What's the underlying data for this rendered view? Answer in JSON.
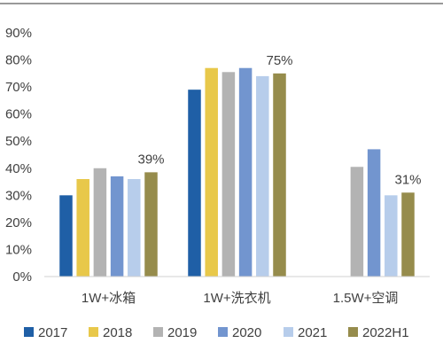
{
  "chart_data": {
    "type": "bar",
    "categories": [
      "1W+冰箱",
      "1W+洗衣机",
      "1.5W+空调"
    ],
    "series": [
      {
        "name": "2017",
        "values": [
          30,
          69,
          null
        ],
        "color": "#1f5fa6"
      },
      {
        "name": "2018",
        "values": [
          36,
          77,
          null
        ],
        "color": "#e8c84a"
      },
      {
        "name": "2019",
        "values": [
          40,
          75.5,
          40.5
        ],
        "color": "#b3b3b3"
      },
      {
        "name": "2020",
        "values": [
          37,
          77,
          47
        ],
        "color": "#7295cf"
      },
      {
        "name": "2021",
        "values": [
          36,
          74,
          30
        ],
        "color": "#b7cdeb"
      },
      {
        "name": "2022H1",
        "values": [
          38.5,
          75,
          31
        ],
        "color": "#968c4c"
      }
    ],
    "ylim": [
      0,
      90
    ],
    "yticks": [
      "0%",
      "10%",
      "20%",
      "30%",
      "40%",
      "50%",
      "60%",
      "70%",
      "80%",
      "90%"
    ],
    "data_labels": [
      {
        "category_index": 0,
        "series_index": 5,
        "text": "39%"
      },
      {
        "category_index": 1,
        "series_index": 5,
        "text": "75%"
      },
      {
        "category_index": 2,
        "series_index": 5,
        "text": "31%"
      }
    ],
    "grid": false,
    "legend_position": "bottom"
  }
}
